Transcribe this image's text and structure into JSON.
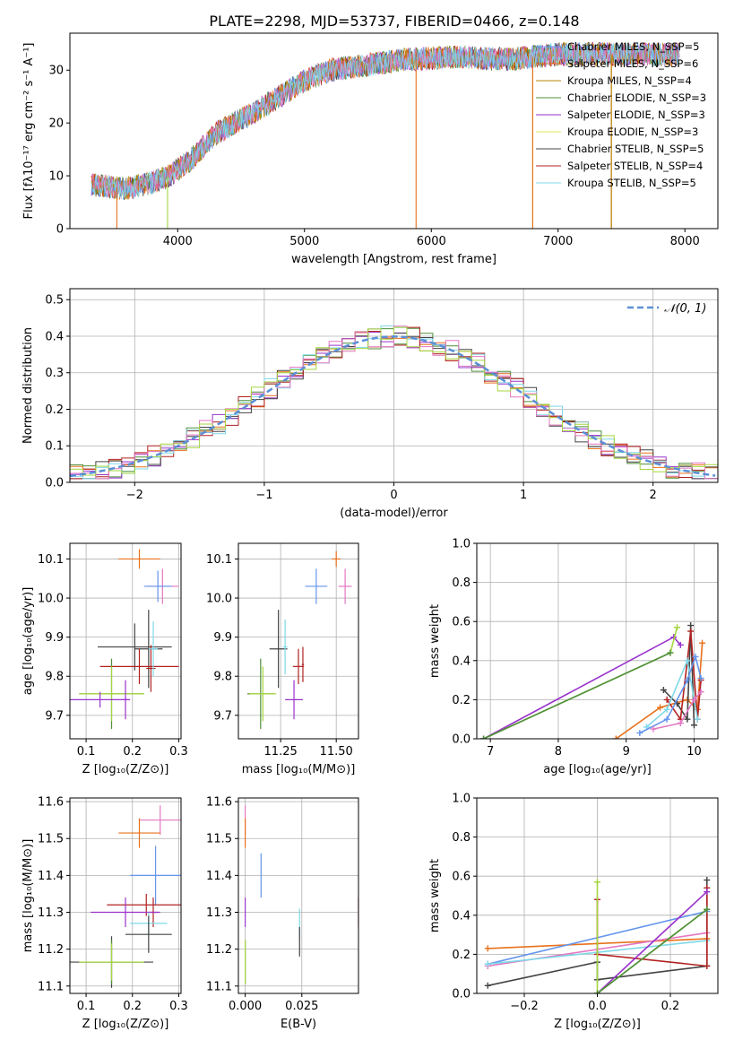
{
  "title": "PLATE=2298, MJD=53737, FIBERID=0466, z=0.148",
  "colors": [
    "#6495ed",
    "#e8711b",
    "#b8860b",
    "#4f8f3a",
    "#9932cc",
    "#e6e65a",
    "#444444",
    "#b22222",
    "#7fd8e8",
    "#e377c2",
    "#a5d63f"
  ],
  "chart_data": [
    {
      "id": "spectrum",
      "type": "line",
      "xlabel": "wavelength [Angstrom, rest frame]",
      "ylabel": "Flux [fλ10⁻¹⁷ erg cm⁻² s⁻¹ A⁻¹]",
      "xlim": [
        3150,
        8260
      ],
      "ylim": [
        0,
        37
      ],
      "xticks": [
        "4000",
        "5000",
        "6000",
        "7000",
        "8000"
      ],
      "yticks": [
        "0",
        "10",
        "20",
        "30"
      ],
      "continuum": {
        "x": [
          3300,
          3600,
          3900,
          4100,
          4300,
          4600,
          4800,
          5000,
          5200,
          5500,
          5800,
          6200,
          6600,
          7000,
          7300,
          7600,
          7900
        ],
        "y": [
          8.5,
          7.5,
          9.5,
          13,
          18,
          22,
          25,
          28,
          30,
          31,
          32,
          32.5,
          32,
          33,
          33,
          33,
          33
        ]
      },
      "legend": [
        "Chabrier MILES, N_SSP=5",
        "Salpeter MILES, N_SSP=6",
        "Kroupa MILES, N_SSP=4",
        "Chabrier ELODIE, N_SSP=3",
        "Salpeter ELODIE, N_SSP=3",
        "Kroupa ELODIE, N_SSP=3",
        "Chabrier STELIB, N_SSP=5",
        "Salpeter STELIB, N_SSP=4",
        "Kroupa STELIB, N_SSP=5"
      ],
      "legend_placement": "top-right",
      "grid": false
    },
    {
      "id": "residuals",
      "type": "histogram",
      "xlabel": "(data-model)/error",
      "ylabel": "Normed distribution",
      "xlim": [
        -2.5,
        2.5
      ],
      "ylim": [
        0,
        0.53
      ],
      "xticks": [
        "−2",
        "−1",
        "0",
        "1",
        "2"
      ],
      "yticks": [
        "0.0",
        "0.1",
        "0.2",
        "0.3",
        "0.4",
        "0.5"
      ],
      "bin_width": 0.1,
      "legend": [
        "𝒩(0, 1)"
      ],
      "legend_placement": "top-right",
      "grid": true
    },
    {
      "id": "age_vs_Z",
      "type": "errorbar",
      "xlabel": "Z [log₁₀(Z/Z⊙)]",
      "ylabel": "age  [log₁₀(age/yr)]",
      "xlim": [
        0.065,
        0.305
      ],
      "ylim": [
        9.64,
        10.14
      ],
      "xticks": [
        "0.1",
        "0.2",
        "0.3"
      ],
      "yticks": [
        "9.7",
        "9.8",
        "9.9",
        "10.0",
        "10.1"
      ],
      "grid": true,
      "points": [
        {
          "x": 0.215,
          "y": 10.1,
          "xerr": 0.045,
          "yerr": 0.025,
          "c": 1
        },
        {
          "x": 0.265,
          "y": 10.03,
          "xerr": 0.035,
          "yerr": 0.045,
          "c": 9
        },
        {
          "x": 0.255,
          "y": 10.03,
          "xerr": 0.03,
          "yerr": 0.04,
          "c": 0
        },
        {
          "x": 0.235,
          "y": 9.87,
          "xerr": 0.03,
          "yerr": 0.1,
          "c": 6
        },
        {
          "x": 0.205,
          "y": 9.875,
          "xerr": 0.08,
          "yerr": 0.06,
          "c": 6
        },
        {
          "x": 0.215,
          "y": 9.825,
          "xerr": 0.085,
          "yerr": 0.045,
          "c": 7
        },
        {
          "x": 0.24,
          "y": 9.82,
          "xerr": 0.01,
          "yerr": 0.06,
          "c": 7
        },
        {
          "x": 0.245,
          "y": 9.87,
          "xerr": 0.01,
          "yerr": 0.07,
          "c": 8
        },
        {
          "x": 0.155,
          "y": 9.755,
          "xerr": 0.07,
          "yerr": 0.09,
          "c": 3
        },
        {
          "x": 0.155,
          "y": 9.755,
          "xerr": 0.07,
          "yerr": 0.07,
          "c": 10
        },
        {
          "x": 0.13,
          "y": 9.74,
          "xerr": 0.065,
          "yerr": 0.02,
          "c": 4
        },
        {
          "x": 0.185,
          "y": 9.74,
          "xerr": 0.005,
          "yerr": 0.05,
          "c": 4
        }
      ]
    },
    {
      "id": "age_vs_mass",
      "type": "errorbar",
      "xlabel": "mass [log₁₀(M/M⊙)]",
      "ylabel": "",
      "xlim": [
        11.06,
        11.6
      ],
      "ylim": [
        9.64,
        10.14
      ],
      "xticks": [
        "11.25",
        "11.50"
      ],
      "yticks": [
        "9.7",
        "9.8",
        "9.9",
        "10.0",
        "10.1"
      ],
      "grid": true,
      "points": [
        {
          "x": 11.5,
          "y": 10.1,
          "xerr": 0.02,
          "yerr": 0.02,
          "c": 1
        },
        {
          "x": 11.54,
          "y": 10.03,
          "xerr": 0.03,
          "yerr": 0.045,
          "c": 9
        },
        {
          "x": 11.41,
          "y": 10.03,
          "xerr": 0.05,
          "yerr": 0.045,
          "c": 0
        },
        {
          "x": 11.24,
          "y": 9.87,
          "xerr": 0.04,
          "yerr": 0.1,
          "c": 6
        },
        {
          "x": 11.27,
          "y": 9.875,
          "xerr": 0.01,
          "yerr": 0.07,
          "c": 8
        },
        {
          "x": 11.33,
          "y": 9.825,
          "xerr": 0.025,
          "yerr": 0.045,
          "c": 7
        },
        {
          "x": 11.35,
          "y": 9.83,
          "xerr": 0.005,
          "yerr": 0.045,
          "c": 7
        },
        {
          "x": 11.16,
          "y": 9.755,
          "xerr": 0.06,
          "yerr": 0.09,
          "c": 3
        },
        {
          "x": 11.17,
          "y": 9.755,
          "xerr": 0.06,
          "yerr": 0.07,
          "c": 10
        },
        {
          "x": 11.31,
          "y": 9.74,
          "xerr": 0.04,
          "yerr": 0.05,
          "c": 4
        }
      ]
    },
    {
      "id": "weight_vs_age",
      "type": "line",
      "xlabel": "age  [log₁₀(age/yr)]",
      "ylabel": "mass weight",
      "xlim": [
        6.8,
        10.35
      ],
      "ylim": [
        0,
        1.0
      ],
      "xticks": [
        "7",
        "8",
        "9",
        "10"
      ],
      "yticks": [
        "0.0",
        "0.2",
        "0.4",
        "0.6",
        "0.8",
        "1.0"
      ],
      "grid": true,
      "series": [
        {
          "c": 4,
          "x": [
            6.9,
            9.7,
            9.8
          ],
          "y": [
            0.0,
            0.52,
            0.48
          ]
        },
        {
          "c": 10,
          "x": [
            6.9,
            9.65,
            9.75
          ],
          "y": [
            0.0,
            0.44,
            0.57
          ]
        },
        {
          "c": 3,
          "x": [
            6.9,
            9.65
          ],
          "y": [
            0.0,
            0.44
          ]
        },
        {
          "c": 1,
          "x": [
            8.85,
            9.5,
            9.9,
            10.05,
            10.12
          ],
          "y": [
            0.0,
            0.16,
            0.2,
            0.15,
            0.49
          ]
        },
        {
          "c": 6,
          "x": [
            9.55,
            9.75,
            9.9,
            9.95,
            10.0
          ],
          "y": [
            0.25,
            0.18,
            0.1,
            0.58,
            0.07
          ]
        },
        {
          "c": 7,
          "x": [
            9.6,
            9.8,
            9.95,
            10.05,
            10.1
          ],
          "y": [
            0.2,
            0.1,
            0.55,
            0.1,
            0.3
          ]
        },
        {
          "c": 8,
          "x": [
            9.3,
            9.6,
            9.9,
            10.05
          ],
          "y": [
            0.06,
            0.15,
            0.4,
            0.1
          ]
        },
        {
          "c": 0,
          "x": [
            9.2,
            9.6,
            9.9,
            10.02,
            10.1
          ],
          "y": [
            0.03,
            0.1,
            0.3,
            0.42,
            0.31
          ]
        },
        {
          "c": 9,
          "x": [
            9.4,
            9.8,
            10.0,
            10.1
          ],
          "y": [
            0.05,
            0.08,
            0.2,
            0.24
          ]
        }
      ]
    },
    {
      "id": "mass_vs_Z",
      "type": "errorbar",
      "xlabel": "Z [log₁₀(Z/Z⊙)]",
      "ylabel": "mass [log₁₀(M/M⊙)]",
      "xlim": [
        0.065,
        0.305
      ],
      "ylim": [
        11.08,
        11.61
      ],
      "xticks": [
        "0.1",
        "0.2",
        "0.3"
      ],
      "yticks": [
        "11.1",
        "11.2",
        "11.3",
        "11.4",
        "11.5",
        "11.6"
      ],
      "grid": true,
      "points": [
        {
          "x": 0.26,
          "y": 11.55,
          "xerr": 0.045,
          "yerr": 0.04,
          "c": 9
        },
        {
          "x": 0.215,
          "y": 11.515,
          "xerr": 0.045,
          "yerr": 0.04,
          "c": 1
        },
        {
          "x": 0.25,
          "y": 11.4,
          "xerr": 0.055,
          "yerr": 0.08,
          "c": 0
        },
        {
          "x": 0.23,
          "y": 11.32,
          "xerr": 0.085,
          "yerr": 0.03,
          "c": 7
        },
        {
          "x": 0.245,
          "y": 11.3,
          "xerr": 0.01,
          "yerr": 0.04,
          "c": 7
        },
        {
          "x": 0.185,
          "y": 11.3,
          "xerr": 0.075,
          "yerr": 0.04,
          "c": 4
        },
        {
          "x": 0.235,
          "y": 11.27,
          "xerr": 0.04,
          "yerr": 0.03,
          "c": 8
        },
        {
          "x": 0.235,
          "y": 11.24,
          "xerr": 0.05,
          "yerr": 0.05,
          "c": 6
        },
        {
          "x": 0.155,
          "y": 11.165,
          "xerr": 0.09,
          "yerr": 0.07,
          "c": 6
        },
        {
          "x": 0.155,
          "y": 11.165,
          "xerr": 0.07,
          "yerr": 0.06,
          "c": 3
        },
        {
          "x": 0.155,
          "y": 11.165,
          "xerr": 0.07,
          "yerr": 0.05,
          "c": 10
        }
      ]
    },
    {
      "id": "mass_vs_ebv",
      "type": "errorbar",
      "xlabel": "E(B-V)",
      "ylabel": "",
      "xlim": [
        -0.003,
        0.05
      ],
      "ylim": [
        11.08,
        11.61
      ],
      "xticks": [
        "0.000",
        "0.025"
      ],
      "yticks": [
        "11.1",
        "11.2",
        "11.3",
        "11.4",
        "11.5",
        "11.6"
      ],
      "grid": true,
      "points": [
        {
          "x": 0.0,
          "y": 11.55,
          "xerr": 0,
          "yerr": 0.04,
          "c": 9
        },
        {
          "x": 0.0,
          "y": 11.515,
          "xerr": 0,
          "yerr": 0.04,
          "c": 1
        },
        {
          "x": 0.007,
          "y": 11.4,
          "xerr": 0,
          "yerr": 0.06,
          "c": 0
        },
        {
          "x": 0.05,
          "y": 11.3,
          "xerr": 0,
          "yerr": 0.04,
          "c": 7
        },
        {
          "x": 0.0,
          "y": 11.3,
          "xerr": 0,
          "yerr": 0.04,
          "c": 4
        },
        {
          "x": 0.024,
          "y": 11.27,
          "xerr": 0,
          "yerr": 0.04,
          "c": 8
        },
        {
          "x": 0.024,
          "y": 11.22,
          "xerr": 0,
          "yerr": 0.04,
          "c": 6
        },
        {
          "x": 0.0,
          "y": 11.165,
          "xerr": 0,
          "yerr": 0.06,
          "c": 3
        },
        {
          "x": 0.0,
          "y": 11.165,
          "xerr": 0,
          "yerr": 0.06,
          "c": 10
        }
      ]
    },
    {
      "id": "weight_vs_Z",
      "type": "line",
      "xlabel": "Z [log₁₀(Z/Z⊙)]",
      "ylabel": "mass weight",
      "xlim": [
        -0.33,
        0.33
      ],
      "ylim": [
        0,
        1.0
      ],
      "xticks": [
        "−0.2",
        "0.0",
        "0.2"
      ],
      "yticks": [
        "0.0",
        "0.2",
        "0.4",
        "0.6",
        "0.8",
        "1.0"
      ],
      "grid": true,
      "series": [
        {
          "c": 1,
          "x": [
            -0.3,
            0.3
          ],
          "y": [
            0.23,
            0.28
          ]
        },
        {
          "c": 0,
          "x": [
            -0.3,
            0.3
          ],
          "y": [
            0.15,
            0.42
          ]
        },
        {
          "c": 9,
          "x": [
            -0.3,
            0.3
          ],
          "y": [
            0.14,
            0.31
          ]
        },
        {
          "c": 8,
          "x": [
            -0.3,
            0.3
          ],
          "y": [
            0.15,
            0.27
          ]
        },
        {
          "c": 6,
          "x": [
            -0.3,
            0.0,
            0.0,
            0.3,
            0.3
          ],
          "y": [
            0.04,
            0.16,
            0.07,
            0.14,
            0.58
          ]
        },
        {
          "c": 7,
          "x": [
            0.0,
            0.0,
            0.3,
            0.3
          ],
          "y": [
            0.48,
            0.2,
            0.14,
            0.54
          ]
        },
        {
          "c": 4,
          "x": [
            0.0,
            0.3
          ],
          "y": [
            0.0,
            0.52
          ]
        },
        {
          "c": 10,
          "x": [
            0.0,
            0.0,
            0.3
          ],
          "y": [
            0.57,
            0.0,
            0.43
          ]
        },
        {
          "c": 3,
          "x": [
            0.0,
            0.3
          ],
          "y": [
            0.0,
            0.43
          ]
        }
      ]
    }
  ]
}
